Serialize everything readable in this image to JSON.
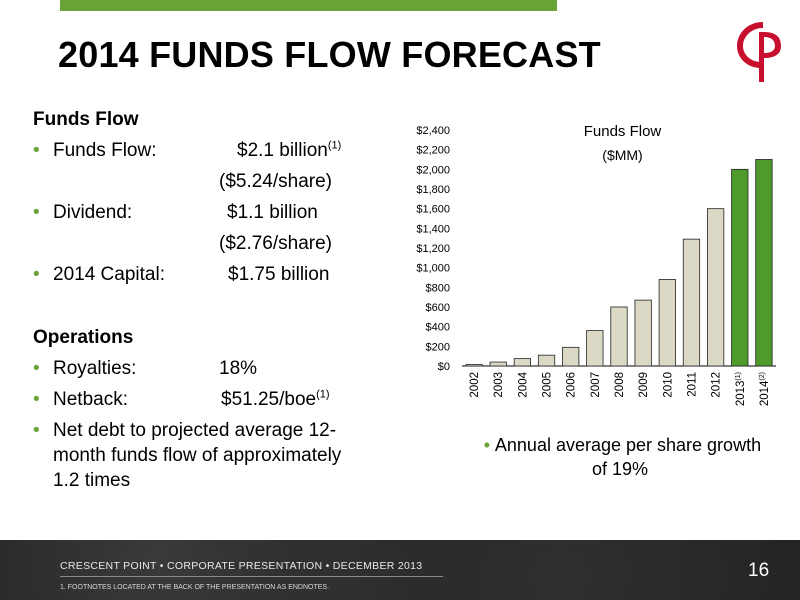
{
  "slide": {
    "title": "2014 FUNDS FLOW FORECAST"
  },
  "funds_flow": {
    "heading": "Funds Flow",
    "items": [
      {
        "label": "Funds Flow:",
        "value": "$2.1 billion",
        "sup": "(1)",
        "sub": "($5.24/share)"
      },
      {
        "label": "Dividend:",
        "value": "$1.1 billion",
        "sub": "($2.76/share)"
      },
      {
        "label": "2014 Capital:",
        "value": "$1.75 billion"
      }
    ]
  },
  "operations": {
    "heading": "Operations",
    "items": [
      {
        "label": "Royalties:",
        "value": "18%"
      },
      {
        "label": "Netback:",
        "value": "$51.25/boe",
        "sup": "(1)"
      }
    ],
    "debt_note": "Net debt to projected average 12-month funds flow of approximately 1.2 times"
  },
  "chart_note": "Annual average per share growth of 19%",
  "footer": {
    "text": "CRESCENT POINT  •  CORPORATE PRESENTATION  •  DECEMBER 2013",
    "footnote": "1.       FOOTNOTES LOCATED AT THE BACK OF THE PRESENTATION AS ENDNOTES.",
    "page": "16"
  },
  "colors": {
    "accent_green": "#6aa337",
    "bar_beige": "#dcd8c6",
    "bar_green": "#4e9a2b"
  },
  "chart_data": {
    "type": "bar",
    "title": "Funds Flow",
    "subtitle": "($MM)",
    "categories": [
      "2002",
      "2003",
      "2004",
      "2005",
      "2006",
      "2007",
      "2008",
      "2009",
      "2010",
      "2011",
      "2012",
      "2013",
      "2014"
    ],
    "category_sups": [
      "",
      "",
      "",
      "",
      "",
      "",
      "",
      "",
      "",
      "",
      "",
      "(1)",
      "(2)"
    ],
    "values": [
      15,
      40,
      75,
      110,
      190,
      360,
      600,
      670,
      880,
      1290,
      1600,
      2000,
      2100
    ],
    "highlight": [
      false,
      false,
      false,
      false,
      false,
      false,
      false,
      false,
      false,
      false,
      false,
      true,
      true
    ],
    "ylim": [
      0,
      2400
    ],
    "yticks": [
      0,
      200,
      400,
      600,
      800,
      1000,
      1200,
      1400,
      1600,
      1800,
      2000,
      2200,
      2400
    ],
    "ytick_labels": [
      "$0",
      "$200",
      "$400",
      "$600",
      "$800",
      "$1,000",
      "$1,200",
      "$1,400",
      "$1,600",
      "$1,800",
      "$2,000",
      "$2,200",
      "$2,400"
    ],
    "grid": false
  }
}
